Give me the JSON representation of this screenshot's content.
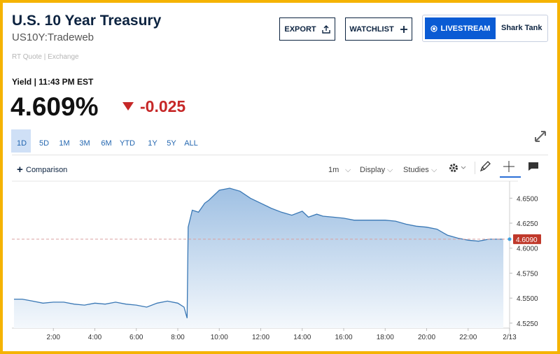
{
  "header": {
    "title": "U.S. 10 Year Treasury",
    "symbol": "US10Y:Tradeweb",
    "quote_source": "RT Quote | Exchange",
    "yield_time": "Yield | 11:43 PM EST",
    "price": "4.609%",
    "change": "-0.025"
  },
  "buttons": {
    "export": "EXPORT",
    "watchlist": "WATCHLIST",
    "livestream": "LIVESTREAM",
    "show": "Shark Tank"
  },
  "ranges": [
    "1D",
    "5D",
    "1M",
    "3M",
    "6M",
    "YTD",
    "1Y",
    "5Y",
    "ALL"
  ],
  "toolbar": {
    "comparison": "Comparison",
    "interval": "1m",
    "display": "Display",
    "studies": "Studies"
  },
  "chart_data": {
    "type": "area",
    "color": "#3a78b5",
    "x": [
      0.1,
      0.5,
      1.0,
      1.5,
      2.0,
      2.5,
      3.0,
      3.5,
      4.0,
      4.5,
      5.0,
      5.5,
      6.0,
      6.5,
      7.0,
      7.5,
      8.0,
      8.3,
      8.45,
      8.5,
      8.7,
      9.0,
      9.3,
      9.5,
      10.0,
      10.5,
      11.0,
      11.5,
      12.0,
      12.5,
      13.0,
      13.5,
      14.0,
      14.3,
      14.7,
      15.0,
      15.5,
      16.0,
      16.5,
      17.0,
      17.5,
      18.0,
      18.5,
      19.0,
      19.5,
      20.0,
      20.5,
      21.0,
      21.5,
      22.0,
      22.5,
      23.0,
      23.5,
      23.7
    ],
    "values": [
      4.549,
      4.549,
      4.547,
      4.545,
      4.546,
      4.546,
      4.544,
      4.543,
      4.545,
      4.544,
      4.546,
      4.544,
      4.543,
      4.541,
      4.545,
      4.547,
      4.545,
      4.541,
      4.53,
      4.621,
      4.638,
      4.636,
      4.645,
      4.648,
      4.658,
      4.66,
      4.657,
      4.65,
      4.645,
      4.64,
      4.636,
      4.633,
      4.637,
      4.631,
      4.634,
      4.632,
      4.631,
      4.63,
      4.628,
      4.628,
      4.628,
      4.628,
      4.627,
      4.624,
      4.622,
      4.621,
      4.619,
      4.613,
      4.61,
      4.608,
      4.607,
      4.609,
      4.609,
      4.609
    ],
    "xlim": [
      0,
      24
    ],
    "xticks": [
      {
        "value": 2,
        "label": "2:00"
      },
      {
        "value": 4,
        "label": "4:00"
      },
      {
        "value": 6,
        "label": "6:00"
      },
      {
        "value": 8,
        "label": "8:00"
      },
      {
        "value": 10,
        "label": "10:00"
      },
      {
        "value": 12,
        "label": "12:00"
      },
      {
        "value": 14,
        "label": "14:00"
      },
      {
        "value": 16,
        "label": "16:00"
      },
      {
        "value": 18,
        "label": "18:00"
      },
      {
        "value": 20,
        "label": "20:00"
      },
      {
        "value": 22,
        "label": "22:00"
      },
      {
        "value": 24,
        "label": "2/13"
      }
    ],
    "ylim": [
      4.52,
      4.667
    ],
    "yticks": [
      {
        "value": 4.525,
        "label": "4.5250"
      },
      {
        "value": 4.55,
        "label": "4.5500"
      },
      {
        "value": 4.575,
        "label": "4.5750"
      },
      {
        "value": 4.6,
        "label": "4.6000"
      },
      {
        "value": 4.625,
        "label": "4.6250"
      },
      {
        "value": 4.65,
        "label": "4.6500"
      }
    ],
    "price_marker": {
      "value": 4.609,
      "label": "4.6090"
    },
    "grid": false
  }
}
